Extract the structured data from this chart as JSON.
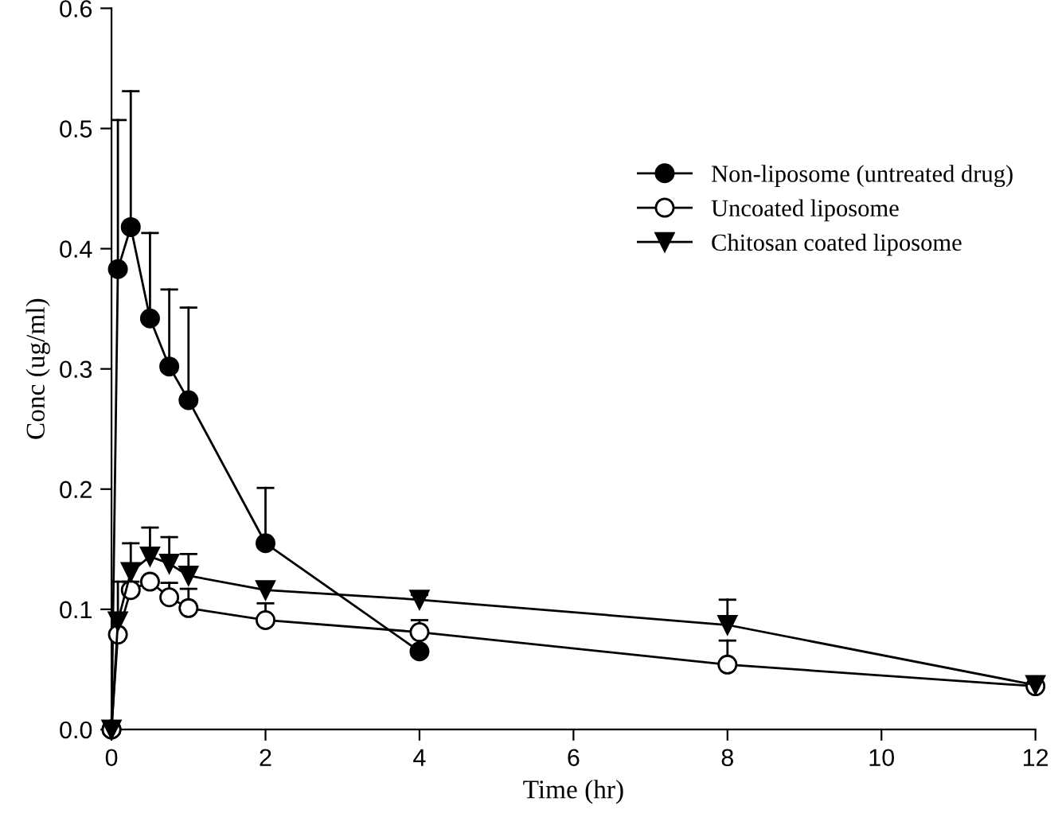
{
  "chart_data": {
    "type": "line",
    "xlabel": "Time (hr)",
    "ylabel": "Conc (ug/ml)",
    "xlim": [
      0,
      12
    ],
    "xticks": [
      0,
      2,
      4,
      6,
      8,
      10,
      12
    ],
    "ylim": [
      0,
      0.6
    ],
    "yticks": [
      {
        "value": 0,
        "label": "0.0"
      },
      0.1,
      0.2,
      0.3,
      0.4,
      0.5,
      0.6
    ],
    "legend": "right",
    "grid": false,
    "line_style": "solid",
    "series": [
      {
        "name": "Non-liposome (untreated drug)",
        "color": "#000000",
        "marker": "circle",
        "x": [
          0,
          0.083,
          0.25,
          0.5,
          0.75,
          1,
          2,
          4
        ],
        "values": [
          0,
          0.383,
          0.418,
          0.342,
          0.302,
          0.274,
          0.155,
          0.065
        ],
        "errors": [
          null,
          [
            0.383,
            0.507
          ],
          [
            0.418,
            0.531
          ],
          [
            0.342,
            0.413
          ],
          [
            0.302,
            0.366
          ],
          [
            0.274,
            0.351
          ],
          [
            0.155,
            0.201
          ],
          null
        ]
      },
      {
        "name": "Uncoated liposome",
        "color": "#000000",
        "marker": "circle",
        "x": [
          0,
          0.083,
          0.25,
          0.5,
          0.75,
          1,
          2,
          4,
          8,
          12
        ],
        "values": [
          0,
          0.079,
          0.116,
          0.123,
          0.11,
          0.101,
          0.091,
          0.081,
          0.054,
          0.036
        ],
        "errors": [
          null,
          null,
          [
            0.116,
            0.123
          ],
          null,
          [
            0.11,
            0.122
          ],
          [
            0.101,
            0.117
          ],
          [
            0.091,
            0.105
          ],
          [
            0.081,
            0.091
          ],
          [
            0.054,
            0.074
          ],
          null
        ]
      },
      {
        "name": "Chitosan coated liposome",
        "color": "#000000",
        "marker": "triangle",
        "x": [
          0,
          0.083,
          0.25,
          0.5,
          0.75,
          1,
          2,
          4,
          8,
          12
        ],
        "values": [
          0,
          0.09,
          0.131,
          0.144,
          0.138,
          0.128,
          0.116,
          0.108,
          0.087,
          0.037
        ],
        "errors": [
          null,
          [
            0.09,
            0.123
          ],
          [
            0.131,
            0.155
          ],
          [
            0.144,
            0.168
          ],
          [
            0.138,
            0.16
          ],
          [
            0.128,
            0.146
          ],
          [
            0.116,
            0.122
          ],
          [
            0.108,
            0.112
          ],
          [
            0.087,
            0.108
          ],
          null
        ]
      }
    ]
  }
}
